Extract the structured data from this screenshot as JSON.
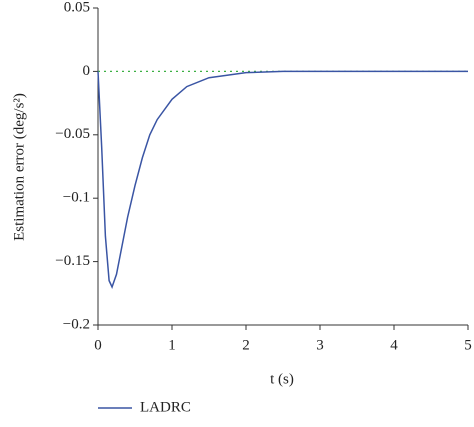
{
  "chart_data": {
    "type": "line",
    "xlabel": "t (s)",
    "ylabel": "Estimation error (deg/s²)",
    "x": [
      0,
      0.05,
      0.1,
      0.15,
      0.19,
      0.25,
      0.3,
      0.4,
      0.5,
      0.6,
      0.7,
      0.8,
      1,
      1.2,
      1.5,
      2,
      2.5,
      3,
      4,
      5
    ],
    "series": [
      {
        "name": "LADRC",
        "color": "#3a55a4",
        "values": [
          0,
          -0.06,
          -0.13,
          -0.165,
          -0.17,
          -0.16,
          -0.145,
          -0.115,
          -0.09,
          -0.068,
          -0.05,
          -0.038,
          -0.022,
          -0.012,
          -0.005,
          -0.001,
          0,
          0,
          0,
          0
        ]
      },
      {
        "color": "#3cb043",
        "dashed": true,
        "values": [
          0,
          0,
          0,
          0,
          0,
          0,
          0,
          0,
          0,
          0,
          0,
          0,
          0,
          0,
          0,
          0,
          0,
          0,
          0,
          0
        ]
      }
    ],
    "xlim": [
      0,
      5
    ],
    "xticks": [
      0,
      1,
      2,
      3,
      4,
      5
    ],
    "ylim": [
      -0.2,
      0.05
    ],
    "yticks": [
      {
        "value": -0.2,
        "label": "−0.2"
      },
      {
        "value": -0.15,
        "label": "−0.15"
      },
      {
        "value": -0.1,
        "label": "−0.1"
      },
      {
        "value": -0.05,
        "label": "−0.05"
      },
      0,
      0.05
    ],
    "legend": "bottom-left"
  }
}
